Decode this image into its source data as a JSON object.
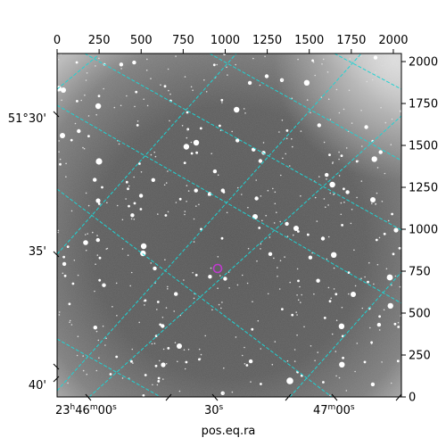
{
  "figure": {
    "xlabel": "pos.eq.ra",
    "pixel_axis_x": {
      "range": [
        0,
        2048
      ],
      "ticks": [
        "0",
        "250",
        "500",
        "750",
        "1000",
        "1250",
        "1500",
        "1750",
        "2000"
      ]
    },
    "pixel_axis_y": {
      "range": [
        0,
        2048
      ],
      "ticks": [
        "0",
        "250",
        "500",
        "750",
        "1000",
        "1250",
        "1500",
        "1750",
        "2000"
      ]
    },
    "dec_ticks": [
      "51°30'",
      "35'",
      "40'"
    ],
    "ra_ticks": [
      "23h46m00s",
      "30s",
      "47m00s"
    ],
    "ra_ticks_parts": [
      {
        "h": "23",
        "hs": "h",
        "m": "46",
        "ms": "m",
        "s": "00",
        "ss": "s"
      },
      {
        "s": "30",
        "ss": "s"
      },
      {
        "m": "47",
        "ms": "m",
        "s": "00",
        "ss": "s"
      }
    ],
    "grid_color": "#1fd3d3",
    "marker_color": "#c03ad0",
    "image_colormap": "gray",
    "image_content": "star field"
  }
}
